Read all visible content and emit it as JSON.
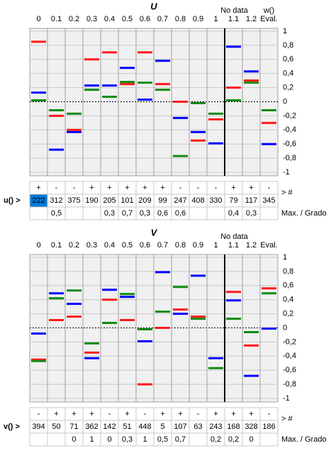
{
  "panels": [
    {
      "title": "U",
      "no_data_label": "No data",
      "extra_label": "w()",
      "columns": [
        "0",
        "0.1",
        "0.2",
        "0.3",
        "0.4",
        "0.5",
        "0.6",
        "0.7",
        "0.8",
        "0.9",
        "1",
        "1.1",
        "1.2",
        "Eval."
      ],
      "ylim": [
        -1,
        1
      ],
      "yticks": [
        1,
        {
          "value": 0.8,
          "label": "0,8"
        },
        {
          "value": 0.6,
          "label": "0,6"
        },
        {
          "value": 0.4,
          "label": "0,4"
        },
        {
          "value": 0.2,
          "label": "0,2"
        },
        0,
        {
          "value": -0.2,
          "label": "-0,2"
        },
        {
          "value": -0.4,
          "label": "-0,4"
        },
        {
          "value": -0.6,
          "label": "-0,6"
        },
        {
          "value": -0.8,
          "label": "-0,8"
        },
        -1
      ],
      "series": [
        {
          "color": "#0000ff",
          "values": [
            0.13,
            -0.68,
            -0.43,
            0.23,
            0.23,
            0.48,
            0.03,
            0.58,
            -0.23,
            -0.43,
            -0.59,
            0.78,
            0.43,
            -0.6
          ]
        },
        {
          "color": "#ff1a1a",
          "values": [
            0.85,
            -0.2,
            -0.4,
            0.6,
            0.7,
            0.25,
            0.7,
            0.25,
            0,
            -0.55,
            -0.25,
            0.2,
            0.3,
            -0.3
          ]
        },
        {
          "color": "#108a10",
          "values": [
            0.02,
            -0.12,
            -0.17,
            0.17,
            0.07,
            0.28,
            0.27,
            0.17,
            -0.77,
            -0.02,
            -0.17,
            0.02,
            0.27,
            -0.12
          ]
        }
      ],
      "signs": [
        "+",
        "-",
        "-",
        "+",
        "+",
        "+",
        "+",
        "+",
        "-",
        "-",
        "-",
        "+",
        "+",
        "-"
      ],
      "row_label": "u() >",
      "counts": [
        222,
        312,
        375,
        190,
        205,
        101,
        209,
        99,
        247,
        408,
        330,
        79,
        117,
        345
      ],
      "count_suffix": "> #",
      "max_grado": [
        null,
        "0,5",
        null,
        null,
        "0,3",
        "0,7",
        "0,3",
        "0,6",
        "0,6",
        null,
        null,
        "0,4",
        "0,3",
        null
      ],
      "max_label": "Max. / Grado"
    },
    {
      "title": "V",
      "no_data_label": "No data",
      "extra_label": null,
      "columns": [
        "0",
        "0.1",
        "0.2",
        "0.3",
        "0.4",
        "0.5",
        "0.6",
        "0.7",
        "0.8",
        "0.9",
        "1",
        "1.1",
        "1.2",
        "Eval."
      ],
      "ylim": [
        -1,
        1
      ],
      "yticks": [
        1,
        {
          "value": 0.8,
          "label": "0,8"
        },
        {
          "value": 0.6,
          "label": "0,6"
        },
        {
          "value": 0.4,
          "label": "0,4"
        },
        {
          "value": 0.2,
          "label": "0,2"
        },
        0,
        {
          "value": -0.2,
          "label": "-0,2"
        },
        {
          "value": -0.4,
          "label": "-0,4"
        },
        {
          "value": -0.6,
          "label": "-0,6"
        },
        {
          "value": -0.8,
          "label": "-0,8"
        },
        -1
      ],
      "series": [
        {
          "color": "#0000ff",
          "values": [
            -0.08,
            0.49,
            0.34,
            -0.43,
            0.54,
            0.44,
            -0.19,
            0.79,
            0.2,
            0.74,
            -0.43,
            0.39,
            -0.68,
            -0.01
          ]
        },
        {
          "color": "#ff1a1a",
          "values": [
            -0.45,
            0.11,
            0.16,
            -0.35,
            0.4,
            0.11,
            -0.8,
            0,
            0.26,
            0.16,
            null,
            0.51,
            -0.25,
            0.56
          ]
        },
        {
          "color": "#108a10",
          "values": [
            -0.47,
            0.42,
            0.53,
            -0.22,
            0.07,
            0.48,
            -0.02,
            0.23,
            0.58,
            0.13,
            -0.57,
            0.13,
            -0.06,
            0.49
          ]
        }
      ],
      "signs": [
        "-",
        "+",
        "+",
        "+",
        "-",
        "+",
        "-",
        "+",
        "+",
        "-",
        "+",
        "+",
        "+",
        "-"
      ],
      "row_label": "v() >",
      "counts": [
        394,
        50,
        71,
        362,
        142,
        51,
        448,
        5,
        107,
        63,
        243,
        168,
        328,
        186
      ],
      "count_suffix": "> #",
      "max_grado": [
        null,
        null,
        "0",
        "1",
        "0",
        "0,3",
        "1",
        "0,5",
        "0,7",
        null,
        "0,2",
        "0,2",
        "0",
        null
      ],
      "max_label": "Max. / Grado"
    }
  ]
}
